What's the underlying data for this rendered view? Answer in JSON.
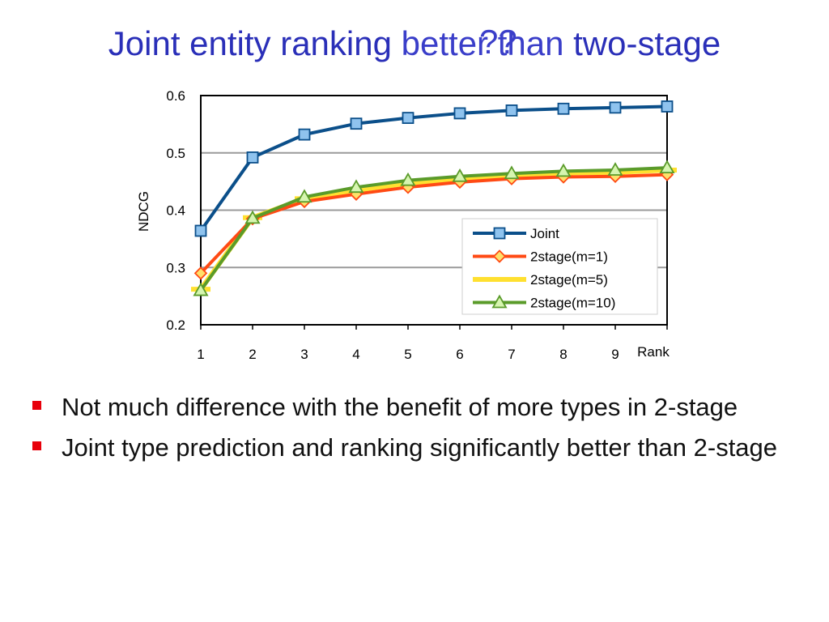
{
  "slide": {
    "title_part1": "Joint entity ranking",
    "title_part2": "better than",
    "title_part3": "two-stage",
    "title_marks": "??",
    "accent_color": "#3a3ec9"
  },
  "bullets": [
    "Not much difference with the benefit of more types in 2-stage",
    "Joint type prediction and ranking significantly better than 2-stage"
  ],
  "chart_data": {
    "type": "line",
    "ylabel": "NDCG",
    "xlabel": "Rank",
    "x": [
      1,
      2,
      3,
      4,
      5,
      6,
      7,
      8,
      9,
      10
    ],
    "x_tick_labels": [
      "1",
      "2",
      "3",
      "4",
      "5",
      "6",
      "7",
      "8",
      "9"
    ],
    "y_ticks": [
      "0.2",
      "0.3",
      "0.4",
      "0.5",
      "0.6"
    ],
    "ylim": [
      0.2,
      0.6
    ],
    "grid": true,
    "legend_position": "right",
    "series": [
      {
        "name": "Joint",
        "color": "#0b4f8a",
        "marker": "square",
        "marker_fill": "#8fc3ee",
        "values": [
          0.364,
          0.492,
          0.532,
          0.551,
          0.561,
          0.569,
          0.574,
          0.577,
          0.579,
          0.581
        ]
      },
      {
        "name": "2stage(m=1)",
        "color": "#ff4a14",
        "marker": "diamond",
        "marker_fill": "#ffe06a",
        "values": [
          0.29,
          0.385,
          0.415,
          0.428,
          0.44,
          0.449,
          0.455,
          0.458,
          0.459,
          0.462
        ]
      },
      {
        "name": "2stage(m=5)",
        "color": "#ffe030",
        "marker": "none",
        "marker_fill": "#ffe030",
        "values": [
          0.262,
          0.387,
          0.42,
          0.435,
          0.447,
          0.455,
          0.461,
          0.465,
          0.466,
          0.47
        ]
      },
      {
        "name": "2stage(m=10)",
        "color": "#5a9b2a",
        "marker": "triangle",
        "marker_fill": "#d6f5b0",
        "values": [
          0.26,
          0.386,
          0.423,
          0.44,
          0.452,
          0.459,
          0.464,
          0.468,
          0.47,
          0.474
        ]
      }
    ]
  }
}
